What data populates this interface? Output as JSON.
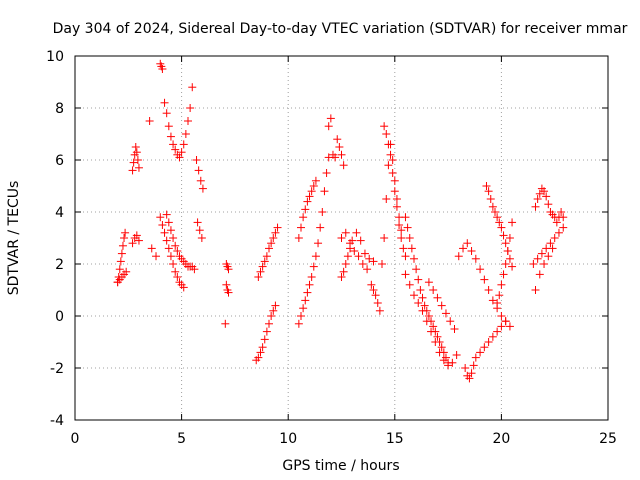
{
  "chart_data": {
    "type": "scatter",
    "title": "Day 304 of 2024, Sidereal Day-to-day VTEC variation (SDTVAR) for receiver mmar",
    "xlabel": "GPS time / hours",
    "ylabel": "SDTVAR / TECUs",
    "xlim": [
      0,
      25
    ],
    "ylim": [
      -4,
      10
    ],
    "xticks": [
      0,
      5,
      10,
      15,
      20,
      25
    ],
    "yticks": [
      -4,
      -2,
      0,
      2,
      4,
      6,
      8,
      10
    ],
    "grid": true,
    "marker": "+",
    "series": [
      {
        "name": "SDTVAR",
        "color": "#ff0000",
        "x": [
          2.0,
          2.05,
          2.1,
          2.15,
          2.2,
          2.25,
          2.3,
          2.35,
          2.0,
          2.1,
          2.2,
          2.3,
          2.4,
          2.7,
          2.75,
          2.8,
          2.85,
          2.9,
          2.95,
          3.0,
          2.7,
          2.8,
          2.9,
          3.0,
          3.5,
          3.6,
          3.8,
          4.0,
          4.05,
          4.1,
          4.2,
          4.3,
          4.4,
          4.5,
          4.6,
          4.7,
          4.8,
          4.9,
          5.0,
          5.1,
          5.2,
          5.3,
          5.4,
          5.5,
          4.3,
          4.4,
          4.5,
          4.6,
          4.7,
          4.8,
          4.9,
          5.0,
          5.1,
          5.2,
          5.3,
          5.4,
          5.5,
          5.6,
          4.0,
          4.1,
          4.2,
          4.3,
          4.4,
          4.5,
          4.6,
          4.7,
          4.8,
          4.9,
          5.0,
          5.1,
          5.7,
          5.8,
          5.9,
          6.0,
          5.75,
          5.85,
          5.95,
          7.1,
          7.15,
          7.2,
          7.1,
          7.15,
          7.2,
          7.05,
          8.5,
          8.6,
          8.7,
          8.8,
          8.9,
          9.0,
          9.1,
          9.2,
          9.3,
          9.4,
          8.6,
          8.7,
          8.8,
          8.9,
          9.0,
          9.1,
          9.2,
          9.3,
          9.4,
          9.5,
          10.5,
          10.6,
          10.7,
          10.8,
          10.9,
          11.0,
          11.1,
          11.2,
          11.3,
          11.4,
          11.5,
          11.6,
          11.7,
          11.8,
          11.9,
          10.5,
          10.6,
          10.7,
          10.8,
          10.9,
          11.0,
          11.1,
          11.2,
          11.3,
          11.9,
          12.0,
          12.1,
          12.2,
          12.3,
          12.4,
          12.5,
          12.6,
          12.5,
          12.6,
          12.7,
          12.8,
          12.9,
          13.0,
          13.2,
          13.4,
          13.6,
          13.8,
          14.0,
          12.5,
          12.7,
          12.9,
          13.1,
          13.3,
          13.5,
          13.7,
          13.9,
          14.0,
          14.1,
          14.2,
          14.3,
          14.4,
          14.5,
          14.6,
          14.7,
          14.8,
          14.9,
          15.0,
          15.1,
          15.2,
          15.3,
          14.5,
          14.6,
          14.7,
          14.8,
          14.9,
          15.0,
          15.1,
          15.2,
          15.3,
          15.4,
          15.5,
          15.5,
          15.7,
          15.9,
          16.1,
          16.3,
          16.5,
          16.7,
          16.9,
          17.1,
          17.3,
          17.5,
          17.7,
          17.9,
          15.5,
          15.6,
          15.7,
          15.8,
          15.9,
          16.0,
          16.1,
          16.2,
          16.3,
          16.4,
          16.5,
          16.6,
          16.7,
          16.8,
          16.9,
          17.0,
          17.1,
          17.2,
          17.3,
          17.4,
          17.5,
          16.6,
          16.8,
          17.0,
          17.2,
          17.4,
          17.6,
          17.8,
          18.0,
          18.2,
          18.4,
          18.6,
          18.8,
          19.0,
          19.2,
          19.4,
          19.6,
          19.8,
          20.0,
          20.2,
          20.4,
          18.3,
          18.4,
          18.5,
          18.6,
          18.7,
          18.8,
          19.0,
          19.2,
          19.4,
          19.6,
          19.8,
          20.0,
          20.2,
          19.3,
          19.4,
          19.5,
          19.6,
          19.7,
          19.8,
          19.9,
          20.0,
          20.1,
          20.2,
          20.3,
          20.4,
          20.5,
          19.8,
          19.9,
          20.0,
          20.1,
          20.2,
          20.3,
          20.4,
          20.5,
          21.6,
          21.7,
          21.8,
          21.9,
          22.0,
          22.1,
          22.2,
          22.3,
          22.4,
          22.5,
          22.6,
          22.7,
          22.8,
          22.9,
          21.5,
          21.7,
          21.9,
          22.1,
          22.3,
          22.5,
          22.7,
          22.9,
          21.6,
          21.8,
          22.0,
          22.2,
          22.4
        ],
        "y": [
          1.3,
          1.5,
          1.8,
          2.1,
          2.4,
          2.7,
          3.0,
          3.2,
          1.3,
          1.4,
          1.5,
          1.6,
          1.7,
          5.6,
          5.9,
          6.2,
          6.5,
          6.3,
          6.0,
          5.7,
          2.8,
          3.0,
          3.1,
          2.9,
          7.5,
          2.6,
          2.3,
          9.7,
          9.6,
          9.5,
          8.2,
          7.8,
          7.3,
          6.9,
          6.6,
          6.4,
          6.2,
          6.1,
          6.3,
          6.6,
          7.0,
          7.5,
          8.0,
          8.8,
          3.9,
          3.6,
          3.3,
          3.0,
          2.7,
          2.5,
          2.3,
          2.2,
          2.1,
          2.0,
          1.9,
          1.9,
          1.9,
          1.8,
          3.8,
          3.5,
          3.2,
          2.9,
          2.6,
          2.3,
          2.0,
          1.7,
          1.5,
          1.3,
          1.2,
          1.1,
          6.0,
          5.6,
          5.2,
          4.9,
          3.6,
          3.3,
          3.0,
          2.0,
          1.9,
          1.8,
          1.2,
          1.0,
          0.9,
          -0.3,
          -1.7,
          -1.6,
          -1.4,
          -1.2,
          -0.9,
          -0.6,
          -0.3,
          0.0,
          0.2,
          0.4,
          1.5,
          1.7,
          1.9,
          2.1,
          2.3,
          2.6,
          2.8,
          3.0,
          3.2,
          3.4,
          -0.3,
          0.0,
          0.3,
          0.6,
          0.9,
          1.2,
          1.5,
          1.9,
          2.3,
          2.8,
          3.4,
          4.0,
          4.8,
          5.5,
          6.1,
          3.0,
          3.4,
          3.8,
          4.1,
          4.4,
          4.6,
          4.8,
          5.0,
          5.2,
          7.3,
          7.6,
          6.2,
          6.1,
          6.8,
          6.5,
          6.2,
          5.8,
          1.5,
          1.7,
          2.0,
          2.3,
          2.6,
          2.9,
          3.2,
          2.9,
          2.4,
          2.2,
          2.1,
          3.0,
          3.2,
          2.8,
          2.5,
          2.3,
          2.0,
          1.8,
          1.2,
          1.0,
          0.8,
          0.5,
          0.2,
          2.0,
          3.0,
          4.5,
          5.8,
          6.6,
          6.0,
          5.2,
          4.5,
          3.8,
          3.3,
          7.3,
          7.0,
          6.6,
          6.2,
          5.5,
          4.8,
          4.2,
          3.5,
          3.0,
          2.6,
          2.3,
          1.6,
          1.2,
          0.8,
          0.5,
          0.2,
          -0.2,
          -0.6,
          -1.0,
          -1.4,
          -1.7,
          -1.9,
          -1.8,
          -1.5,
          3.8,
          3.4,
          3.0,
          2.6,
          2.2,
          1.8,
          1.4,
          1.0,
          0.7,
          0.4,
          0.2,
          0.0,
          -0.2,
          -0.4,
          -0.6,
          -0.8,
          -1.0,
          -1.2,
          -1.4,
          -1.6,
          -1.8,
          1.3,
          1.0,
          0.7,
          0.4,
          0.1,
          -0.2,
          -0.5,
          2.3,
          2.6,
          2.8,
          2.5,
          2.2,
          1.8,
          1.4,
          1.0,
          0.6,
          0.3,
          0.0,
          -0.2,
          -0.4,
          -2.0,
          -2.3,
          -2.4,
          -2.2,
          -1.9,
          -1.6,
          -1.4,
          -1.2,
          -1.0,
          -0.8,
          -0.6,
          -0.4,
          -0.2,
          5.0,
          4.8,
          4.5,
          4.2,
          4.0,
          3.8,
          3.6,
          3.4,
          3.1,
          2.8,
          2.5,
          2.2,
          1.9,
          0.5,
          0.8,
          1.2,
          1.6,
          2.0,
          2.5,
          3.0,
          3.6,
          4.2,
          4.5,
          4.7,
          4.9,
          4.8,
          4.6,
          4.3,
          4.0,
          3.9,
          3.8,
          3.6,
          3.8,
          4.0,
          3.8,
          2.0,
          2.2,
          2.4,
          2.6,
          2.8,
          3.0,
          3.2,
          3.4,
          1.0,
          1.6,
          2.0,
          2.3,
          2.6
        ]
      }
    ]
  }
}
